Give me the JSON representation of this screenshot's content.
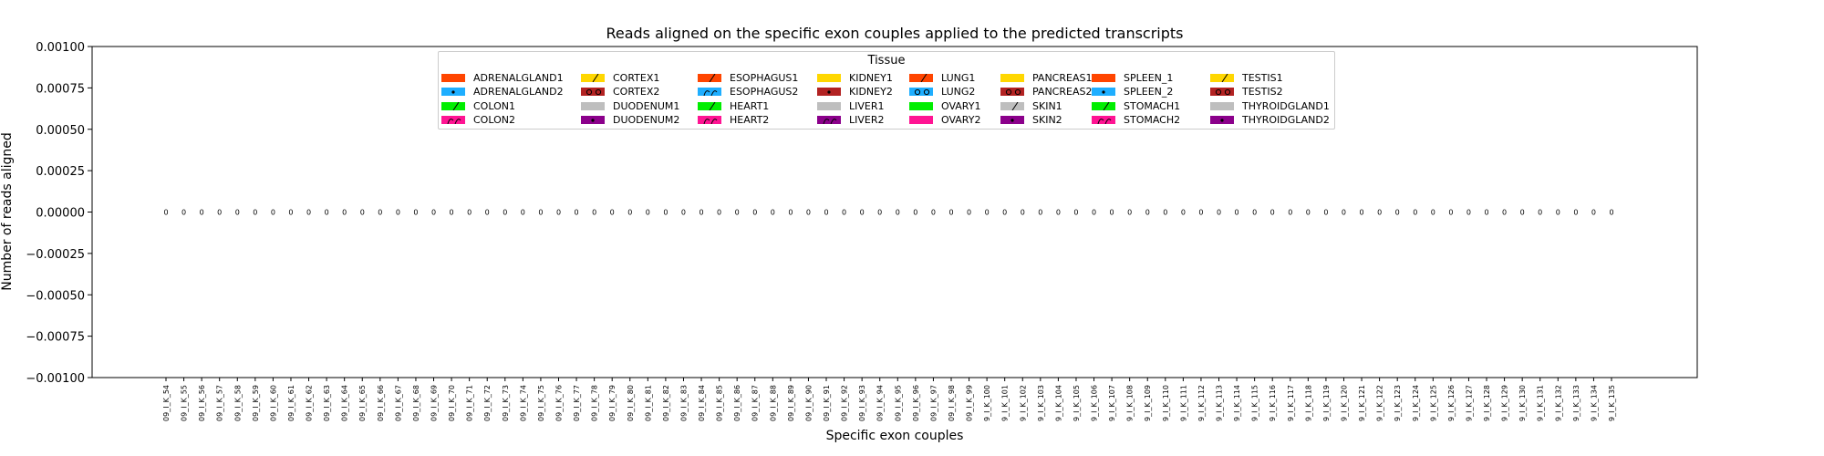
{
  "chart_data": {
    "type": "bar",
    "title": "Reads aligned on the specific exon couples applied to the predicted transcripts",
    "xlabel": "Specific exon couples",
    "ylabel": "Number of reads aligned",
    "ylim": [
      -0.001,
      0.001
    ],
    "yticks": [
      0.001,
      0.00075,
      0.0005,
      0.00025,
      0.0,
      -0.00025,
      -0.0005,
      -0.00075,
      -0.001
    ],
    "ytick_labels": [
      "0.00100",
      "0.00075",
      "0.00050",
      "0.00025",
      "0.00000",
      "−0.00025",
      "−0.00050",
      "−0.00075",
      "−0.00100"
    ],
    "grid": false,
    "legend_title": "Tissue",
    "legend_placement": "upper center",
    "categories": [
      "09_I_K_54",
      "09_I_K_55",
      "09_I_K_56",
      "09_I_K_57",
      "09_I_K_58",
      "09_I_K_59",
      "09_I_K_60",
      "09_I_K_61",
      "09_I_K_62",
      "09_I_K_63",
      "09_I_K_64",
      "09_I_K_65",
      "09_I_K_66",
      "09_I_K_67",
      "09_I_K_68",
      "09_I_K_69",
      "09_I_K_70",
      "09_I_K_71",
      "09_I_K_72",
      "09_I_K_73",
      "09_I_K_74",
      "09_I_K_75",
      "09_I_K_76",
      "09_I_K_77",
      "09_I_K_78",
      "09_I_K_79",
      "09_I_K_80",
      "09_I_K_81",
      "09_I_K_82",
      "09_I_K_83",
      "09_I_K_84",
      "09_I_K_85",
      "09_I_K_86",
      "09_I_K_87",
      "09_I_K_88",
      "09_I_K_89",
      "09_I_K_90",
      "09_I_K_91",
      "09_I_K_92",
      "09_I_K_93",
      "09_I_K_94",
      "09_I_K_95",
      "09_I_K_96",
      "09_I_K_97",
      "09_I_K_98",
      "09_I_K_99",
      "9_I_K_100",
      "9_I_K_101",
      "9_I_K_102",
      "9_I_K_103",
      "9_I_K_104",
      "9_I_K_105",
      "9_I_K_106",
      "9_I_K_107",
      "9_I_K_108",
      "9_I_K_109",
      "9_I_K_110",
      "9_I_K_111",
      "9_I_K_112",
      "9_I_K_113",
      "9_I_K_114",
      "9_I_K_115",
      "9_I_K_116",
      "9_I_K_117",
      "9_I_K_118",
      "9_I_K_119",
      "9_I_K_120",
      "9_I_K_121",
      "9_I_K_122",
      "9_I_K_123",
      "9_I_K_124",
      "9_I_K_125",
      "9_I_K_126",
      "9_I_K_127",
      "9_I_K_128",
      "9_I_K_129",
      "9_I_K_130",
      "9_I_K_131",
      "9_I_K_132",
      "9_I_K_133",
      "9_I_K_134",
      "9_I_K_135"
    ],
    "values": [
      0,
      0,
      0,
      0,
      0,
      0,
      0,
      0,
      0,
      0,
      0,
      0,
      0,
      0,
      0,
      0,
      0,
      0,
      0,
      0,
      0,
      0,
      0,
      0,
      0,
      0,
      0,
      0,
      0,
      0,
      0,
      0,
      0,
      0,
      0,
      0,
      0,
      0,
      0,
      0,
      0,
      0,
      0,
      0,
      0,
      0,
      0,
      0,
      0,
      0,
      0,
      0,
      0,
      0,
      0,
      0,
      0,
      0,
      0,
      0,
      0,
      0,
      0,
      0,
      0,
      0,
      0,
      0,
      0,
      0,
      0,
      0,
      0,
      0,
      0,
      0,
      0,
      0,
      0,
      0,
      0,
      0
    ],
    "value_labels": [
      "0",
      "0",
      "0",
      "0",
      "0",
      "0",
      "0",
      "0",
      "0",
      "0",
      "0",
      "0",
      "0",
      "0",
      "0",
      "0",
      "0",
      "0",
      "0",
      "0",
      "0",
      "0",
      "0",
      "0",
      "0",
      "0",
      "0",
      "0",
      "0",
      "0",
      "0",
      "0",
      "0",
      "0",
      "0",
      "0",
      "0",
      "0",
      "0",
      "0",
      "0",
      "0",
      "0",
      "0",
      "0",
      "0",
      "0",
      "0",
      "0",
      "0",
      "0",
      "0",
      "0",
      "0",
      "0",
      "0",
      "0",
      "0",
      "0",
      "0",
      "0",
      "0",
      "0",
      "0",
      "0",
      "0",
      "0",
      "0",
      "0",
      "0",
      "0",
      "0",
      "0",
      "0",
      "0",
      "0",
      "0",
      "0",
      "0",
      "0",
      "0",
      "0"
    ],
    "legend": [
      [
        {
          "name": "ADRENALGLAND1",
          "color": "#ff4500",
          "hatch": "none"
        },
        {
          "name": "ADRENALGLAND2",
          "color": "#1eaeff",
          "hatch": "dot"
        },
        {
          "name": "COLON1",
          "color": "#00ee00",
          "hatch": "slash"
        },
        {
          "name": "COLON2",
          "color": "#ff1493",
          "hatch": "curve"
        }
      ],
      [
        {
          "name": "CORTEX1",
          "color": "#ffd700",
          "hatch": "slash"
        },
        {
          "name": "CORTEX2",
          "color": "#b22222",
          "hatch": "circle"
        },
        {
          "name": "DUODENUM1",
          "color": "#bebebe",
          "hatch": "none"
        },
        {
          "name": "DUODENUM2",
          "color": "#8b008b",
          "hatch": "dot"
        }
      ],
      [
        {
          "name": "ESOPHAGUS1",
          "color": "#ff4500",
          "hatch": "slash"
        },
        {
          "name": "ESOPHAGUS2",
          "color": "#1eaeff",
          "hatch": "curve"
        },
        {
          "name": "HEART1",
          "color": "#00ee00",
          "hatch": "slash"
        },
        {
          "name": "HEART2",
          "color": "#ff1493",
          "hatch": "curve"
        }
      ],
      [
        {
          "name": "KIDNEY1",
          "color": "#ffd700",
          "hatch": "none"
        },
        {
          "name": "KIDNEY2",
          "color": "#b22222",
          "hatch": "dot"
        },
        {
          "name": "LIVER1",
          "color": "#bebebe",
          "hatch": "none"
        },
        {
          "name": "LIVER2",
          "color": "#8b008b",
          "hatch": "curve"
        }
      ],
      [
        {
          "name": "LUNG1",
          "color": "#ff4500",
          "hatch": "slash"
        },
        {
          "name": "LUNG2",
          "color": "#1eaeff",
          "hatch": "circle"
        },
        {
          "name": "OVARY1",
          "color": "#00ee00",
          "hatch": "none"
        },
        {
          "name": "OVARY2",
          "color": "#ff1493",
          "hatch": "none"
        }
      ],
      [
        {
          "name": "PANCREAS1",
          "color": "#ffd700",
          "hatch": "none"
        },
        {
          "name": "PANCREAS2",
          "color": "#b22222",
          "hatch": "circle"
        },
        {
          "name": "SKIN1",
          "color": "#bebebe",
          "hatch": "slash"
        },
        {
          "name": "SKIN2",
          "color": "#8b008b",
          "hatch": "dot"
        }
      ],
      [
        {
          "name": "SPLEEN_1",
          "color": "#ff4500",
          "hatch": "none"
        },
        {
          "name": "SPLEEN_2",
          "color": "#1eaeff",
          "hatch": "dot"
        },
        {
          "name": "STOMACH1",
          "color": "#00ee00",
          "hatch": "slash"
        },
        {
          "name": "STOMACH2",
          "color": "#ff1493",
          "hatch": "curve"
        }
      ],
      [
        {
          "name": "TESTIS1",
          "color": "#ffd700",
          "hatch": "slash"
        },
        {
          "name": "TESTIS2",
          "color": "#b22222",
          "hatch": "circle"
        },
        {
          "name": "THYROIDGLAND1",
          "color": "#bebebe",
          "hatch": "none"
        },
        {
          "name": "THYROIDGLAND2",
          "color": "#8b008b",
          "hatch": "dot"
        }
      ]
    ]
  }
}
